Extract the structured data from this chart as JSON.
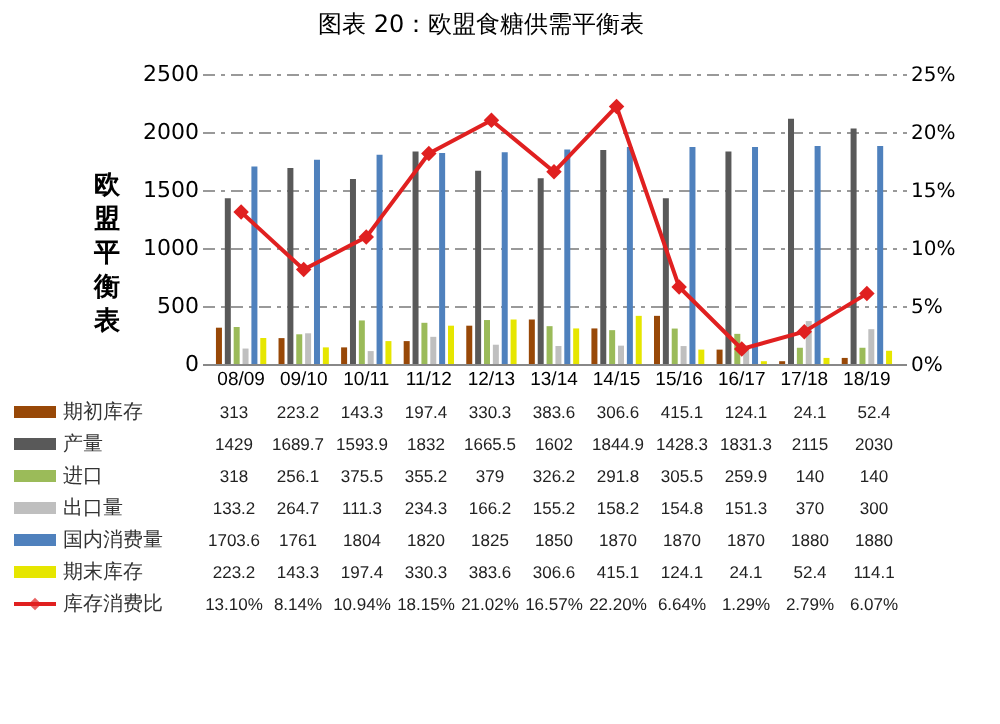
{
  "chart_data": {
    "type": "bar",
    "title": "图表 20：欧盟食糖供需平衡表",
    "ylabel": "欧盟平衡表",
    "categories": [
      "08/09",
      "09/10",
      "10/11",
      "11/12",
      "12/13",
      "13/14",
      "14/15",
      "15/16",
      "16/17",
      "17/18",
      "18/19"
    ],
    "ylim": [
      0,
      2500
    ],
    "yticks": [
      0,
      500,
      1000,
      1500,
      2000,
      2500
    ],
    "y2lim": [
      0,
      25
    ],
    "y2ticks": [
      {
        "value": 0,
        "label": "0%"
      },
      {
        "value": 5,
        "label": "5%"
      },
      {
        "value": 10,
        "label": "10%"
      },
      {
        "value": 15,
        "label": "15%"
      },
      {
        "value": 20,
        "label": "20%"
      },
      {
        "value": 25,
        "label": "25%"
      }
    ],
    "grid": "y",
    "legend": "bottom",
    "marker": "diamond",
    "line_style": "solid",
    "series": [
      {
        "name": "期初库存",
        "color": "#984807",
        "values": [
          313,
          223.2,
          143.3,
          197.4,
          330.3,
          383.6,
          306.6,
          415.1,
          124.1,
          24.1,
          52.4
        ],
        "value_labels": [
          "313",
          "223.2",
          "143.3",
          "197.4",
          "330.3",
          "383.6",
          "306.6",
          "415.1",
          "124.1",
          "24.1",
          "52.4"
        ]
      },
      {
        "name": "产量",
        "color": "#595959",
        "values": [
          1429,
          1689.7,
          1593.9,
          1832,
          1665.5,
          1602,
          1844.9,
          1428.3,
          1831.3,
          2115,
          2030
        ],
        "value_labels": [
          "1429",
          "1689.7",
          "1593.9",
          "1832",
          "1665.5",
          "1602",
          "1844.9",
          "1428.3",
          "1831.3",
          "2115",
          "2030"
        ]
      },
      {
        "name": "进口",
        "color": "#9bbb59",
        "values": [
          318,
          256.1,
          375.5,
          355.2,
          379,
          326.2,
          291.8,
          305.5,
          259.9,
          140,
          140
        ],
        "value_labels": [
          "318",
          "256.1",
          "375.5",
          "355.2",
          "379",
          "326.2",
          "291.8",
          "305.5",
          "259.9",
          "140",
          "140"
        ]
      },
      {
        "name": "出口量",
        "color": "#bfbfbf",
        "values": [
          133.2,
          264.7,
          111.3,
          234.3,
          166.2,
          155.2,
          158.2,
          154.8,
          151.3,
          370,
          300
        ],
        "value_labels": [
          "133.2",
          "264.7",
          "111.3",
          "234.3",
          "166.2",
          "155.2",
          "158.2",
          "154.8",
          "151.3",
          "370",
          "300"
        ]
      },
      {
        "name": "国内消费量",
        "color": "#4f81bd",
        "values": [
          1703.6,
          1761,
          1804,
          1820,
          1825,
          1850,
          1870,
          1870,
          1870,
          1880,
          1880
        ],
        "value_labels": [
          "1703.6",
          "1761",
          "1804",
          "1820",
          "1825",
          "1850",
          "1870",
          "1870",
          "1870",
          "1880",
          "1880"
        ]
      },
      {
        "name": "期末库存",
        "color": "#e6e600",
        "values": [
          223.2,
          143.3,
          197.4,
          330.3,
          383.6,
          306.6,
          415.1,
          124.1,
          24.1,
          52.4,
          114.1
        ],
        "value_labels": [
          "223.2",
          "143.3",
          "197.4",
          "330.3",
          "383.6",
          "306.6",
          "415.1",
          "124.1",
          "24.1",
          "52.4",
          "114.1"
        ]
      },
      {
        "name": "库存消费比",
        "type": "line",
        "axis": "y2",
        "color": "#e02020",
        "values": [
          13.1,
          8.14,
          10.94,
          18.15,
          21.02,
          16.57,
          22.2,
          6.64,
          1.29,
          2.79,
          6.07
        ],
        "value_labels": [
          "13.10%",
          "8.14%",
          "10.94%",
          "18.15%",
          "21.02%",
          "16.57%",
          "22.20%",
          "6.64%",
          "1.29%",
          "2.79%",
          "6.07%"
        ]
      }
    ]
  }
}
